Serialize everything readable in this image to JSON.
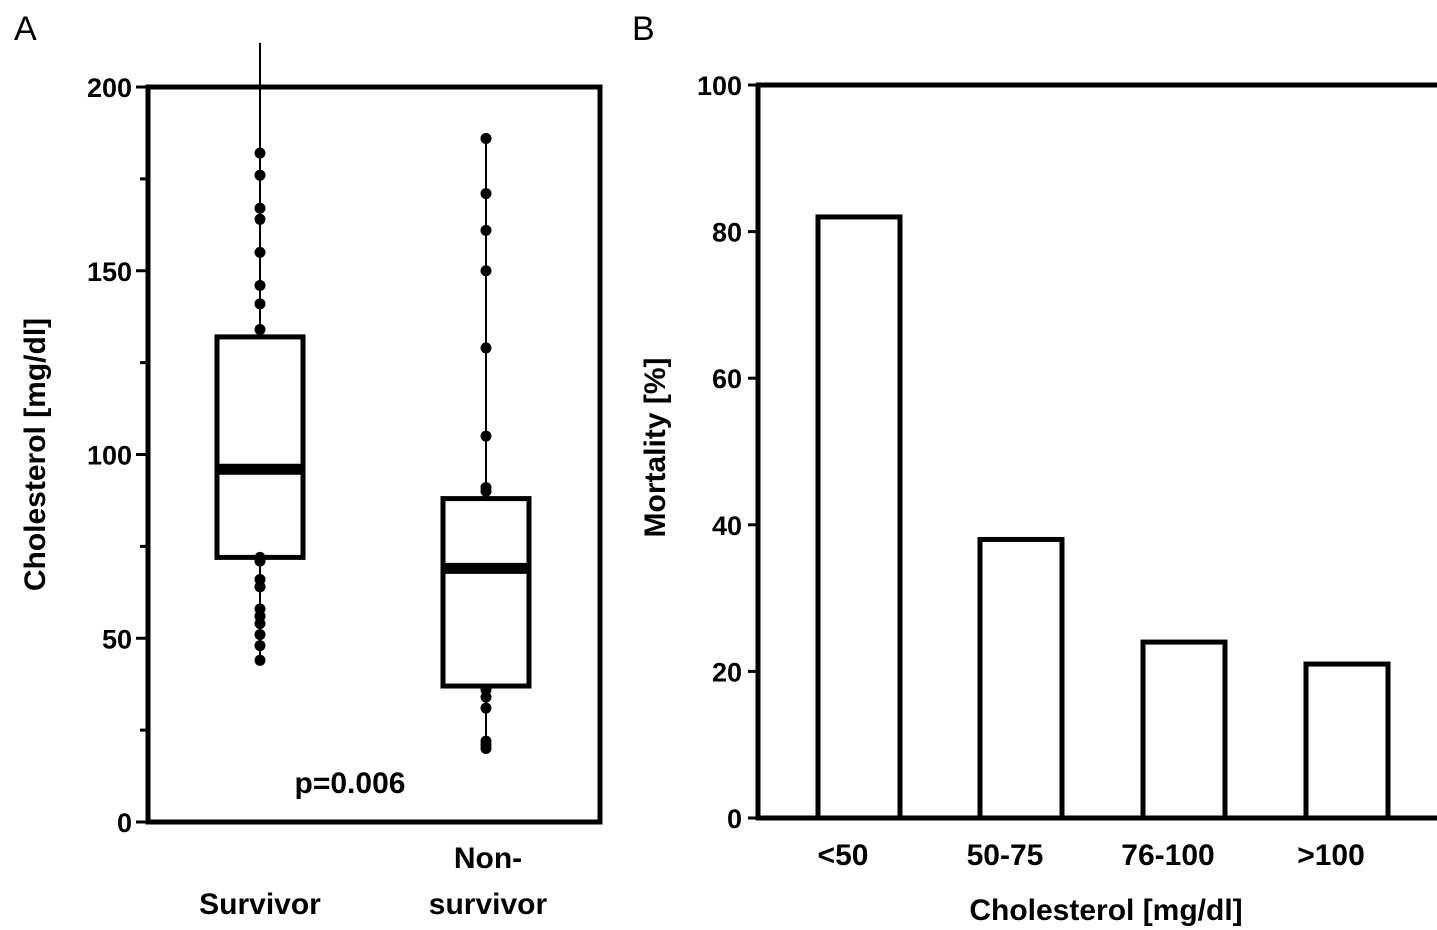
{
  "chart_data": [
    {
      "panel": "A",
      "type": "box",
      "ylabel": "Cholesterol [mg/dl]",
      "ylim": [
        0,
        200
      ],
      "yticks": [
        0,
        50,
        100,
        150,
        200
      ],
      "yminor": [
        25,
        75,
        125,
        175
      ],
      "categories": [
        "Survivor",
        "Non-\nsurvivor"
      ],
      "category_lines": [
        [
          "Survivor"
        ],
        [
          "Non-",
          "survivor"
        ]
      ],
      "annotation": "p=0.006",
      "boxes": [
        {
          "q1": 72,
          "median": 96,
          "q3": 132,
          "whisker_low": 44,
          "whisker_high": 212,
          "points": [
            182,
            176,
            167,
            164,
            155,
            146,
            141,
            134,
            72,
            71,
            66,
            64,
            58,
            56,
            54,
            51,
            48,
            44
          ]
        },
        {
          "q1": 37,
          "median": 69,
          "q3": 88,
          "whisker_low": 20,
          "whisker_high": 186,
          "points": [
            186,
            171,
            161,
            150,
            129,
            105,
            91,
            90,
            36,
            34,
            31,
            22,
            21,
            20
          ]
        }
      ]
    },
    {
      "panel": "B",
      "type": "bar",
      "xlabel": "Cholesterol [mg/dl]",
      "ylabel": "Mortality [%]",
      "ylim": [
        0,
        100
      ],
      "yticks": [
        0,
        20,
        40,
        60,
        80,
        100
      ],
      "categories": [
        "<50",
        "50-75",
        "76-100",
        ">100"
      ],
      "values": [
        82,
        38,
        24,
        21
      ]
    }
  ]
}
